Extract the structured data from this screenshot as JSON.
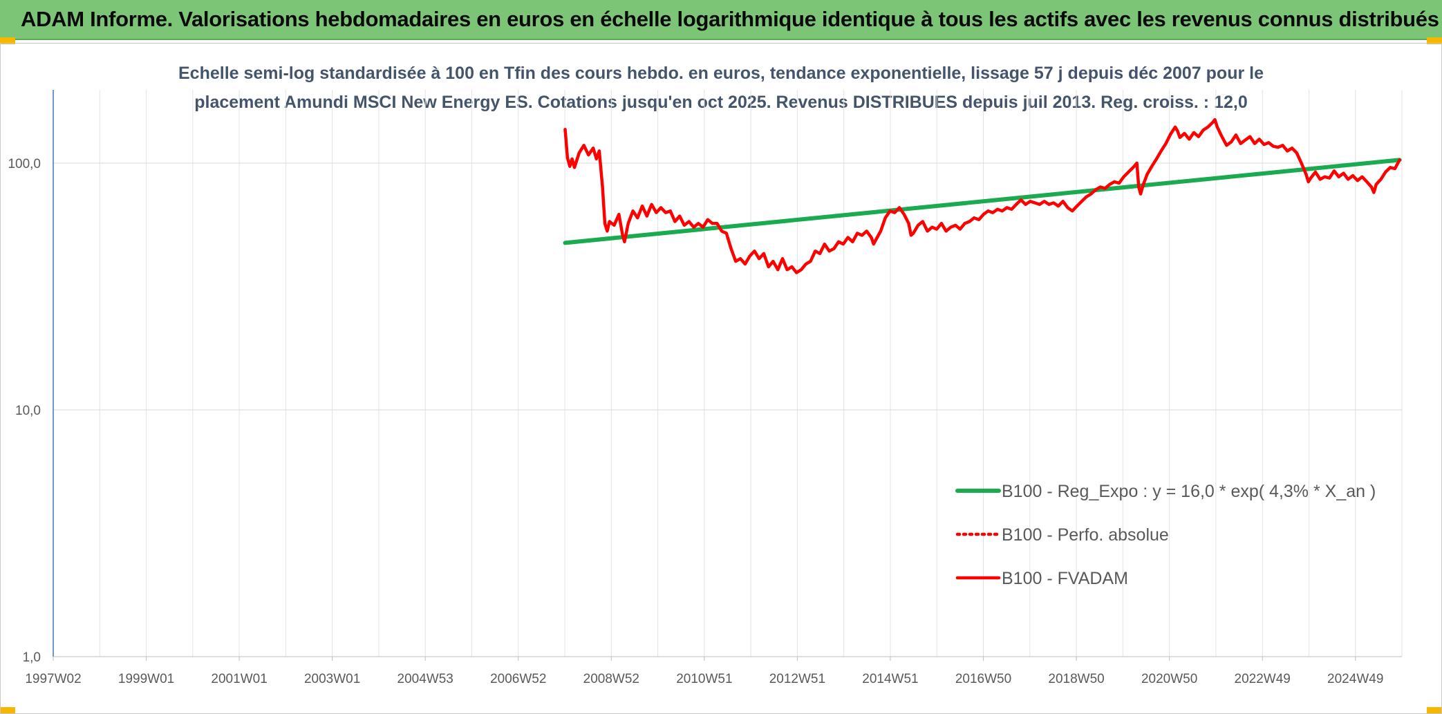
{
  "header": {
    "title": "ADAM Informe. Valorisations hebdomadaires en euros en échelle logarithmique identique à tous les actifs avec les revenus connus distribués"
  },
  "chart_data": {
    "type": "line",
    "title_line1": "Echelle semi-log standardisée à 100 en Tfin des cours hebdo. en euros, tendance exponentielle, lissage 57 j depuis déc 2007 pour le",
    "title_line2": "placement Amundi MSCI New Energy ES. Cotations jusqu'en oct 2025. Revenus DISTRIBUES depuis juil 2013. Reg. croiss. : 12,0",
    "y_scale": "log",
    "ylim": [
      1,
      180
    ],
    "y_ticks": [
      {
        "value": 1,
        "label": "1,0"
      },
      {
        "value": 10,
        "label": "10,0"
      },
      {
        "value": 100,
        "label": "100,0"
      }
    ],
    "x_range": [
      1997.0,
      2025.85
    ],
    "x_tick_labels": [
      "1997W02",
      "1999W01",
      "2001W01",
      "2003W01",
      "2004W53",
      "2006W52",
      "2008W52",
      "2010W51",
      "2012W51",
      "2014W51",
      "2016W50",
      "2018W50",
      "2020W50",
      "2022W49",
      "2024W49"
    ],
    "legend_position": "bottom-right",
    "grid": true,
    "series": [
      {
        "name": "B100 - Reg_Expo : y = 16,0 * exp( 4,3% *  X_an )",
        "color": "#1aaa4f",
        "style": "solid",
        "points": [
          [
            2007.95,
            47.5
          ],
          [
            2025.8,
            103
          ]
        ]
      },
      {
        "name": "B100 - Perfo. absolue",
        "color": "#ff0000",
        "style": "dotted",
        "points": []
      },
      {
        "name": "B100 - FVADAM",
        "color": "#ff0000",
        "style": "solid",
        "points": [
          [
            2007.95,
            137
          ],
          [
            2008.0,
            105
          ],
          [
            2008.05,
            97
          ],
          [
            2008.1,
            104
          ],
          [
            2008.15,
            96
          ],
          [
            2008.25,
            110
          ],
          [
            2008.35,
            118
          ],
          [
            2008.45,
            108
          ],
          [
            2008.55,
            115
          ],
          [
            2008.62,
            104
          ],
          [
            2008.68,
            112
          ],
          [
            2008.75,
            80
          ],
          [
            2008.8,
            57
          ],
          [
            2008.85,
            53
          ],
          [
            2008.9,
            58
          ],
          [
            2009.0,
            56
          ],
          [
            2009.1,
            62
          ],
          [
            2009.18,
            51
          ],
          [
            2009.22,
            48
          ],
          [
            2009.3,
            57
          ],
          [
            2009.4,
            64
          ],
          [
            2009.5,
            60
          ],
          [
            2009.6,
            67
          ],
          [
            2009.7,
            61
          ],
          [
            2009.8,
            68
          ],
          [
            2009.9,
            63
          ],
          [
            2010.0,
            66
          ],
          [
            2010.1,
            63
          ],
          [
            2010.2,
            64
          ],
          [
            2010.3,
            58
          ],
          [
            2010.4,
            61
          ],
          [
            2010.5,
            56
          ],
          [
            2010.6,
            58
          ],
          [
            2010.7,
            55
          ],
          [
            2010.8,
            57
          ],
          [
            2010.9,
            55
          ],
          [
            2011.0,
            59
          ],
          [
            2011.1,
            57
          ],
          [
            2011.2,
            57
          ],
          [
            2011.3,
            53
          ],
          [
            2011.4,
            52
          ],
          [
            2011.5,
            45
          ],
          [
            2011.6,
            40
          ],
          [
            2011.7,
            41
          ],
          [
            2011.8,
            39
          ],
          [
            2011.9,
            42
          ],
          [
            2012.0,
            44
          ],
          [
            2012.1,
            41
          ],
          [
            2012.2,
            43
          ],
          [
            2012.3,
            38
          ],
          [
            2012.4,
            40
          ],
          [
            2012.5,
            37
          ],
          [
            2012.6,
            41
          ],
          [
            2012.7,
            37
          ],
          [
            2012.8,
            38
          ],
          [
            2012.9,
            36
          ],
          [
            2013.0,
            37
          ],
          [
            2013.1,
            39
          ],
          [
            2013.2,
            40
          ],
          [
            2013.3,
            44
          ],
          [
            2013.4,
            43
          ],
          [
            2013.5,
            47
          ],
          [
            2013.6,
            44
          ],
          [
            2013.7,
            45
          ],
          [
            2013.8,
            48
          ],
          [
            2013.9,
            47
          ],
          [
            2014.0,
            50
          ],
          [
            2014.1,
            48
          ],
          [
            2014.2,
            52
          ],
          [
            2014.3,
            51
          ],
          [
            2014.4,
            53
          ],
          [
            2014.5,
            50
          ],
          [
            2014.55,
            47
          ],
          [
            2014.6,
            49
          ],
          [
            2014.7,
            53
          ],
          [
            2014.8,
            60
          ],
          [
            2014.9,
            64
          ],
          [
            2015.0,
            63
          ],
          [
            2015.1,
            66
          ],
          [
            2015.2,
            62
          ],
          [
            2015.3,
            57
          ],
          [
            2015.35,
            51
          ],
          [
            2015.4,
            52
          ],
          [
            2015.5,
            56
          ],
          [
            2015.6,
            58
          ],
          [
            2015.7,
            53
          ],
          [
            2015.8,
            55
          ],
          [
            2015.9,
            54
          ],
          [
            2016.0,
            57
          ],
          [
            2016.1,
            53
          ],
          [
            2016.2,
            55
          ],
          [
            2016.3,
            56
          ],
          [
            2016.4,
            54
          ],
          [
            2016.5,
            57
          ],
          [
            2016.6,
            58
          ],
          [
            2016.7,
            60
          ],
          [
            2016.8,
            59
          ],
          [
            2016.9,
            62
          ],
          [
            2017.0,
            64
          ],
          [
            2017.1,
            63
          ],
          [
            2017.2,
            65
          ],
          [
            2017.3,
            64
          ],
          [
            2017.4,
            66
          ],
          [
            2017.5,
            65
          ],
          [
            2017.6,
            68
          ],
          [
            2017.7,
            71
          ],
          [
            2017.8,
            68
          ],
          [
            2017.9,
            70
          ],
          [
            2018.0,
            69
          ],
          [
            2018.1,
            68
          ],
          [
            2018.2,
            70
          ],
          [
            2018.3,
            68
          ],
          [
            2018.4,
            69
          ],
          [
            2018.5,
            67
          ],
          [
            2018.6,
            70
          ],
          [
            2018.7,
            66
          ],
          [
            2018.8,
            64
          ],
          [
            2018.9,
            67
          ],
          [
            2019.0,
            70
          ],
          [
            2019.1,
            73
          ],
          [
            2019.2,
            75
          ],
          [
            2019.3,
            78
          ],
          [
            2019.4,
            80
          ],
          [
            2019.5,
            79
          ],
          [
            2019.6,
            82
          ],
          [
            2019.7,
            84
          ],
          [
            2019.8,
            83
          ],
          [
            2019.9,
            88
          ],
          [
            2020.0,
            92
          ],
          [
            2020.1,
            96
          ],
          [
            2020.18,
            100
          ],
          [
            2020.22,
            80
          ],
          [
            2020.26,
            75
          ],
          [
            2020.32,
            82
          ],
          [
            2020.4,
            90
          ],
          [
            2020.5,
            97
          ],
          [
            2020.6,
            104
          ],
          [
            2020.7,
            112
          ],
          [
            2020.8,
            120
          ],
          [
            2020.9,
            131
          ],
          [
            2021.0,
            140
          ],
          [
            2021.05,
            135
          ],
          [
            2021.1,
            127
          ],
          [
            2021.2,
            132
          ],
          [
            2021.3,
            125
          ],
          [
            2021.4,
            133
          ],
          [
            2021.5,
            128
          ],
          [
            2021.6,
            136
          ],
          [
            2021.7,
            140
          ],
          [
            2021.8,
            146
          ],
          [
            2021.85,
            150
          ],
          [
            2021.9,
            140
          ],
          [
            2022.0,
            128
          ],
          [
            2022.1,
            118
          ],
          [
            2022.2,
            122
          ],
          [
            2022.3,
            130
          ],
          [
            2022.4,
            120
          ],
          [
            2022.5,
            124
          ],
          [
            2022.6,
            128
          ],
          [
            2022.7,
            120
          ],
          [
            2022.8,
            125
          ],
          [
            2022.9,
            119
          ],
          [
            2023.0,
            121
          ],
          [
            2023.1,
            117
          ],
          [
            2023.2,
            116
          ],
          [
            2023.3,
            118
          ],
          [
            2023.4,
            112
          ],
          [
            2023.5,
            115
          ],
          [
            2023.6,
            110
          ],
          [
            2023.7,
            100
          ],
          [
            2023.8,
            90
          ],
          [
            2023.85,
            84
          ],
          [
            2023.9,
            87
          ],
          [
            2024.0,
            92
          ],
          [
            2024.1,
            86
          ],
          [
            2024.2,
            88
          ],
          [
            2024.3,
            87
          ],
          [
            2024.4,
            93
          ],
          [
            2024.5,
            88
          ],
          [
            2024.6,
            91
          ],
          [
            2024.7,
            86
          ],
          [
            2024.8,
            89
          ],
          [
            2024.9,
            85
          ],
          [
            2025.0,
            88
          ],
          [
            2025.1,
            84
          ],
          [
            2025.2,
            80
          ],
          [
            2025.25,
            76
          ],
          [
            2025.3,
            82
          ],
          [
            2025.4,
            86
          ],
          [
            2025.5,
            92
          ],
          [
            2025.6,
            96
          ],
          [
            2025.7,
            95
          ],
          [
            2025.8,
            103
          ]
        ]
      }
    ]
  }
}
